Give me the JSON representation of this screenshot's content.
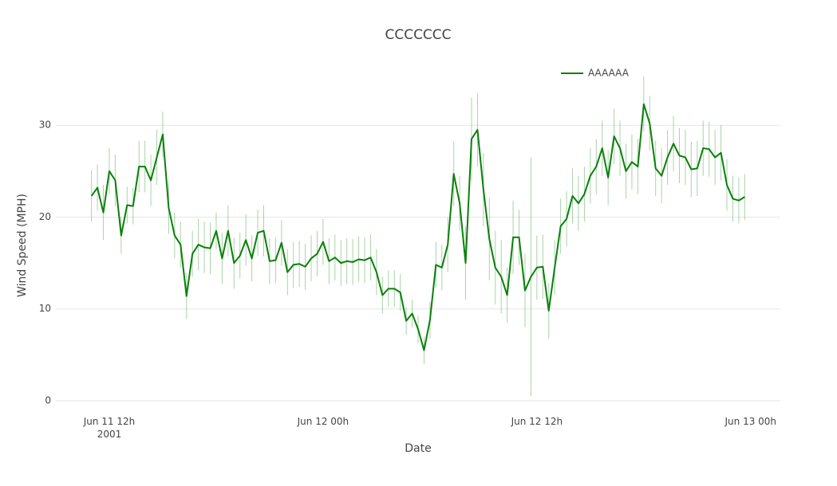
{
  "chart_data": {
    "type": "line",
    "title": "CCCCCCC",
    "x_label": "Date",
    "y_label": "Wind Speed (MPH)",
    "xlim": [
      "2001-06-11 09:00",
      "2001-06-13 01:40"
    ],
    "xticks": [
      {
        "value": "2001-06-11 12:00",
        "label": "Jun 11 12h\n2001"
      },
      {
        "value": "2001-06-12 00:00",
        "label": "Jun 12 00h"
      },
      {
        "value": "2001-06-12 12:00",
        "label": "Jun 12 12h"
      },
      {
        "value": "2001-06-13 00:00",
        "label": "Jun 13 00h"
      }
    ],
    "ylim": [
      0,
      38
    ],
    "yticks": [
      0,
      10,
      20,
      30
    ],
    "grid": true,
    "legend": "top-right",
    "x": [
      "2001-06-11 11:00",
      "2001-06-11 11:20",
      "2001-06-11 11:40",
      "2001-06-11 12:00",
      "2001-06-11 12:20",
      "2001-06-11 12:40",
      "2001-06-11 13:00",
      "2001-06-11 13:20",
      "2001-06-11 13:40",
      "2001-06-11 14:00",
      "2001-06-11 14:20",
      "2001-06-11 14:40",
      "2001-06-11 15:00",
      "2001-06-11 15:20",
      "2001-06-11 15:40",
      "2001-06-11 16:00",
      "2001-06-11 16:20",
      "2001-06-11 16:40",
      "2001-06-11 17:00",
      "2001-06-11 17:20",
      "2001-06-11 17:40",
      "2001-06-11 18:00",
      "2001-06-11 18:20",
      "2001-06-11 18:40",
      "2001-06-11 19:00",
      "2001-06-11 19:20",
      "2001-06-11 19:40",
      "2001-06-11 20:00",
      "2001-06-11 20:20",
      "2001-06-11 20:40",
      "2001-06-11 21:00",
      "2001-06-11 21:20",
      "2001-06-11 21:40",
      "2001-06-11 22:00",
      "2001-06-11 22:20",
      "2001-06-11 22:40",
      "2001-06-11 23:00",
      "2001-06-11 23:20",
      "2001-06-11 23:40",
      "2001-06-12 00:00",
      "2001-06-12 00:20",
      "2001-06-12 00:40",
      "2001-06-12 01:00",
      "2001-06-12 01:20",
      "2001-06-12 01:40",
      "2001-06-12 02:00",
      "2001-06-12 02:20",
      "2001-06-12 02:40",
      "2001-06-12 03:00",
      "2001-06-12 03:20",
      "2001-06-12 03:40",
      "2001-06-12 04:00",
      "2001-06-12 04:20",
      "2001-06-12 04:40",
      "2001-06-12 05:00",
      "2001-06-12 05:20",
      "2001-06-12 05:40",
      "2001-06-12 06:00",
      "2001-06-12 06:20",
      "2001-06-12 06:40",
      "2001-06-12 07:00",
      "2001-06-12 07:20",
      "2001-06-12 07:40",
      "2001-06-12 08:00",
      "2001-06-12 08:20",
      "2001-06-12 08:40",
      "2001-06-12 09:00",
      "2001-06-12 09:20",
      "2001-06-12 09:40",
      "2001-06-12 10:00",
      "2001-06-12 10:20",
      "2001-06-12 10:40",
      "2001-06-12 11:00",
      "2001-06-12 11:20",
      "2001-06-12 11:40",
      "2001-06-12 12:00",
      "2001-06-12 12:20",
      "2001-06-12 12:40",
      "2001-06-12 13:00",
      "2001-06-12 13:20",
      "2001-06-12 13:40",
      "2001-06-12 14:00",
      "2001-06-12 14:20",
      "2001-06-12 14:40",
      "2001-06-12 15:00",
      "2001-06-12 15:20",
      "2001-06-12 15:40",
      "2001-06-12 16:00",
      "2001-06-12 16:20",
      "2001-06-12 16:40",
      "2001-06-12 17:00",
      "2001-06-12 17:20",
      "2001-06-12 17:40",
      "2001-06-12 18:00",
      "2001-06-12 18:20",
      "2001-06-12 18:40",
      "2001-06-12 19:00",
      "2001-06-12 19:20",
      "2001-06-12 19:40",
      "2001-06-12 20:00",
      "2001-06-12 20:20",
      "2001-06-12 20:40",
      "2001-06-12 21:00",
      "2001-06-12 21:20",
      "2001-06-12 21:40",
      "2001-06-12 22:00",
      "2001-06-12 22:20",
      "2001-06-12 22:40",
      "2001-06-12 23:00",
      "2001-06-12 23:20",
      "2001-06-12 23:40"
    ],
    "series": [
      {
        "name": "AAAAAA",
        "color": "#0a800a",
        "error_color": "rgba(10,128,10,0.35)",
        "values": [
          22.3,
          23.2,
          20.5,
          25,
          24,
          18,
          21.3,
          21.2,
          25.5,
          25.5,
          24,
          26.5,
          29,
          21,
          18,
          17,
          11.4,
          16,
          17,
          16.7,
          16.6,
          18.5,
          15.5,
          18.5,
          15,
          15.8,
          17.5,
          15.5,
          18.3,
          18.5,
          15.2,
          15.3,
          17.2,
          14,
          14.8,
          14.9,
          14.6,
          15.5,
          16,
          17.3,
          15.2,
          15.6,
          15,
          15.2,
          15.1,
          15.4,
          15.3,
          15.6,
          14,
          11.5,
          12.2,
          12.2,
          11.8,
          8.7,
          9.5,
          7.8,
          5.5,
          8.8,
          14.8,
          14.5,
          17,
          24.7,
          21.5,
          15,
          28.5,
          29.5,
          23,
          17.6,
          14.5,
          13.5,
          11.5,
          17.8,
          17.8,
          12,
          13.5,
          14.5,
          14.6,
          9.8,
          14.5,
          19,
          19.8,
          22.3,
          21.5,
          22.5,
          24.5,
          25.5,
          27.5,
          24.3,
          28.8,
          27.5,
          25,
          26,
          25.5,
          32.3,
          30.2,
          25.3,
          24.5,
          26.5,
          28,
          26.7,
          26.5,
          25.2,
          25.3,
          27.5,
          27.4,
          26.5,
          27,
          23.5,
          22,
          21.8,
          22.2
        ],
        "errors": [
          2.8,
          2.5,
          3,
          2.5,
          2.8,
          2,
          2,
          2,
          2.8,
          2.8,
          2.8,
          3,
          2.5,
          2.8,
          2.5,
          2.5,
          2.5,
          2.5,
          2.8,
          2.8,
          2.8,
          2,
          2.8,
          2.8,
          2.8,
          2.5,
          2.8,
          2.5,
          2.5,
          2.8,
          2.5,
          2.5,
          2.5,
          2.5,
          2.5,
          2.5,
          2.5,
          2.5,
          2.5,
          2.5,
          2.5,
          2.5,
          2.5,
          2.5,
          2.5,
          2.5,
          2.5,
          2.5,
          2.5,
          2,
          2,
          2,
          2,
          1.5,
          1.5,
          1.5,
          1.5,
          2,
          2.5,
          2.5,
          3,
          3.5,
          3,
          4,
          4.5,
          4,
          4,
          4.5,
          4,
          4,
          3,
          4,
          3,
          4,
          13,
          3.5,
          3.5,
          3,
          3,
          3,
          3,
          3,
          3,
          3,
          3,
          3,
          3,
          3,
          3,
          3,
          3,
          3,
          3,
          3,
          3,
          3,
          3,
          3,
          3,
          3,
          3,
          3,
          3,
          3,
          3,
          3,
          3,
          2.8,
          2.5,
          2.5,
          2.5
        ]
      }
    ]
  }
}
